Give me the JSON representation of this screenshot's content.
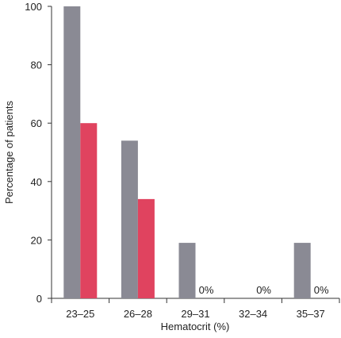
{
  "chart_data": {
    "type": "bar",
    "xlabel": "Hematocrit (%)",
    "ylabel": "Percentage of patients",
    "ylim": [
      0,
      100
    ],
    "yticks": [
      0,
      20,
      40,
      60,
      80,
      100
    ],
    "categories": [
      "23–25",
      "26–28",
      "29–31",
      "32–34",
      "35–37"
    ],
    "series": [
      {
        "color": "#8a8a94",
        "values": [
          100,
          54,
          19,
          0,
          19
        ]
      },
      {
        "color": "#e0435f",
        "values": [
          60,
          34,
          0,
          0,
          0
        ]
      }
    ],
    "annotations": [
      {
        "category": "29–31",
        "text": "0%"
      },
      {
        "category": "32–34",
        "text": "0%"
      },
      {
        "category": "35–37",
        "text": "0%"
      }
    ],
    "grid": false,
    "legend": "none"
  }
}
